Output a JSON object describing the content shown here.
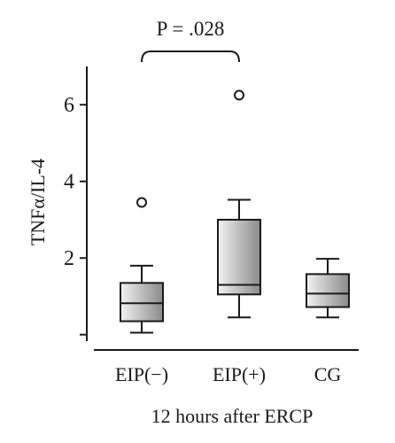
{
  "chart_data": {
    "type": "box",
    "ylabel": "TNFα/IL-4",
    "xlabel": "12 hours after ERCP",
    "ylim": [
      -0.4,
      7
    ],
    "yticks": [
      {
        "value": 2,
        "label": "2"
      },
      {
        "value": 4,
        "label": "4"
      },
      {
        "value": 6,
        "label": "6"
      }
    ],
    "categories": [
      "EIP(−)",
      "EIP(+)",
      "CG"
    ],
    "boxes": [
      {
        "category": "EIP(−)",
        "whisker_low": 0.05,
        "q1": 0.35,
        "median": 0.82,
        "q3": 1.35,
        "whisker_high": 1.8,
        "outliers": [
          3.45
        ]
      },
      {
        "category": "EIP(+)",
        "whisker_low": 0.45,
        "q1": 1.05,
        "median": 1.3,
        "q3": 3.0,
        "whisker_high": 3.52,
        "outliers": [
          6.25
        ]
      },
      {
        "category": "CG",
        "whisker_low": 0.45,
        "q1": 0.72,
        "median": 1.07,
        "q3": 1.58,
        "whisker_high": 1.98,
        "outliers": []
      }
    ],
    "annotations": [
      {
        "text": "P = .028",
        "between": [
          "EIP(−)",
          "EIP(+)"
        ]
      }
    ],
    "grid": false,
    "legend": "none"
  },
  "colors": {
    "axis": "#1a1a1a",
    "box_fill_light": "#f2f2f2",
    "box_fill_dark": "#8a8a8a"
  }
}
